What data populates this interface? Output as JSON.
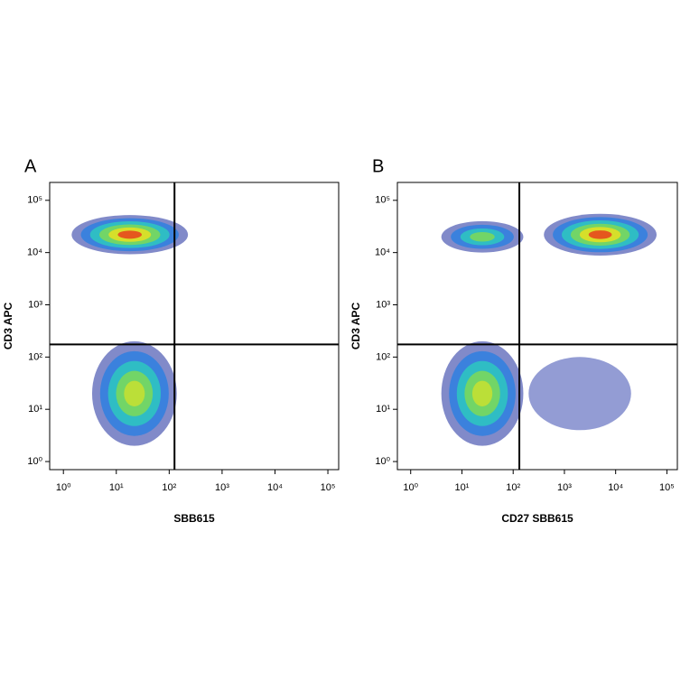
{
  "chart_data": [
    {
      "type": "scatter",
      "panel_label": "A",
      "x_label": "SBB615",
      "y_label": "CD3 APC",
      "xscale": "log",
      "yscale": "log",
      "xlim": [
        0.55,
        160000
      ],
      "ylim": [
        0.7,
        220000
      ],
      "xticks": [
        {
          "value": 1,
          "label": "10⁰"
        },
        {
          "value": 10,
          "label": "10¹"
        },
        {
          "value": 100,
          "label": "10²"
        },
        {
          "value": 1000,
          "label": "10³"
        },
        {
          "value": 10000,
          "label": "10⁴"
        },
        {
          "value": 100000,
          "label": "10⁵"
        }
      ],
      "yticks": [
        {
          "value": 1,
          "label": "10⁰"
        },
        {
          "value": 10,
          "label": "10¹"
        },
        {
          "value": 100,
          "label": "10²"
        },
        {
          "value": 1000,
          "label": "10³"
        },
        {
          "value": 10000,
          "label": "10⁴"
        },
        {
          "value": 100000,
          "label": "10⁵"
        }
      ],
      "gates": {
        "x": 126,
        "y": 174
      },
      "populations": [
        {
          "x": 18,
          "y": 22000,
          "width_decades": 2.2,
          "height_decades": 0.75,
          "colors": [
            "#1a2a9c",
            "#2f7fe0",
            "#2ec8c0",
            "#7ed957",
            "#e8e020",
            "#e8401c"
          ]
        },
        {
          "x": 22,
          "y": 20,
          "width_decades": 1.6,
          "height_decades": 2.0,
          "colors": [
            "#1a2a9c",
            "#2f7fe0",
            "#2ec8c0",
            "#7ed957",
            "#c8e030"
          ]
        }
      ]
    },
    {
      "type": "scatter",
      "panel_label": "B",
      "x_label": "CD27 SBB615",
      "y_label": "CD3 APC",
      "xscale": "log",
      "yscale": "log",
      "xlim": [
        0.55,
        160000
      ],
      "ylim": [
        0.7,
        220000
      ],
      "xticks": [
        {
          "value": 1,
          "label": "10⁰"
        },
        {
          "value": 10,
          "label": "10¹"
        },
        {
          "value": 100,
          "label": "10²"
        },
        {
          "value": 1000,
          "label": "10³"
        },
        {
          "value": 10000,
          "label": "10⁴"
        },
        {
          "value": 100000,
          "label": "10⁵"
        }
      ],
      "yticks": [
        {
          "value": 1,
          "label": "10⁰"
        },
        {
          "value": 10,
          "label": "10¹"
        },
        {
          "value": 100,
          "label": "10²"
        },
        {
          "value": 1000,
          "label": "10³"
        },
        {
          "value": 10000,
          "label": "10⁴"
        },
        {
          "value": 100000,
          "label": "10⁵"
        }
      ],
      "gates": {
        "x": 132,
        "y": 174
      },
      "populations": [
        {
          "x": 25,
          "y": 20000,
          "width_decades": 1.6,
          "height_decades": 0.6,
          "colors": [
            "#1a2a9c",
            "#2f7fe0",
            "#2ec8c0",
            "#7ed957"
          ]
        },
        {
          "x": 5000,
          "y": 22000,
          "width_decades": 2.2,
          "height_decades": 0.8,
          "colors": [
            "#1a2a9c",
            "#2f7fe0",
            "#2ec8c0",
            "#7ed957",
            "#e8e020",
            "#e8401c"
          ]
        },
        {
          "x": 25,
          "y": 20,
          "width_decades": 1.6,
          "height_decades": 2.0,
          "colors": [
            "#1a2a9c",
            "#2f7fe0",
            "#2ec8c0",
            "#7ed957",
            "#c8e030"
          ]
        },
        {
          "x": 2000,
          "y": 20,
          "width_decades": 2.0,
          "height_decades": 1.4,
          "colors": [
            "#3a4ab0"
          ]
        }
      ]
    }
  ]
}
